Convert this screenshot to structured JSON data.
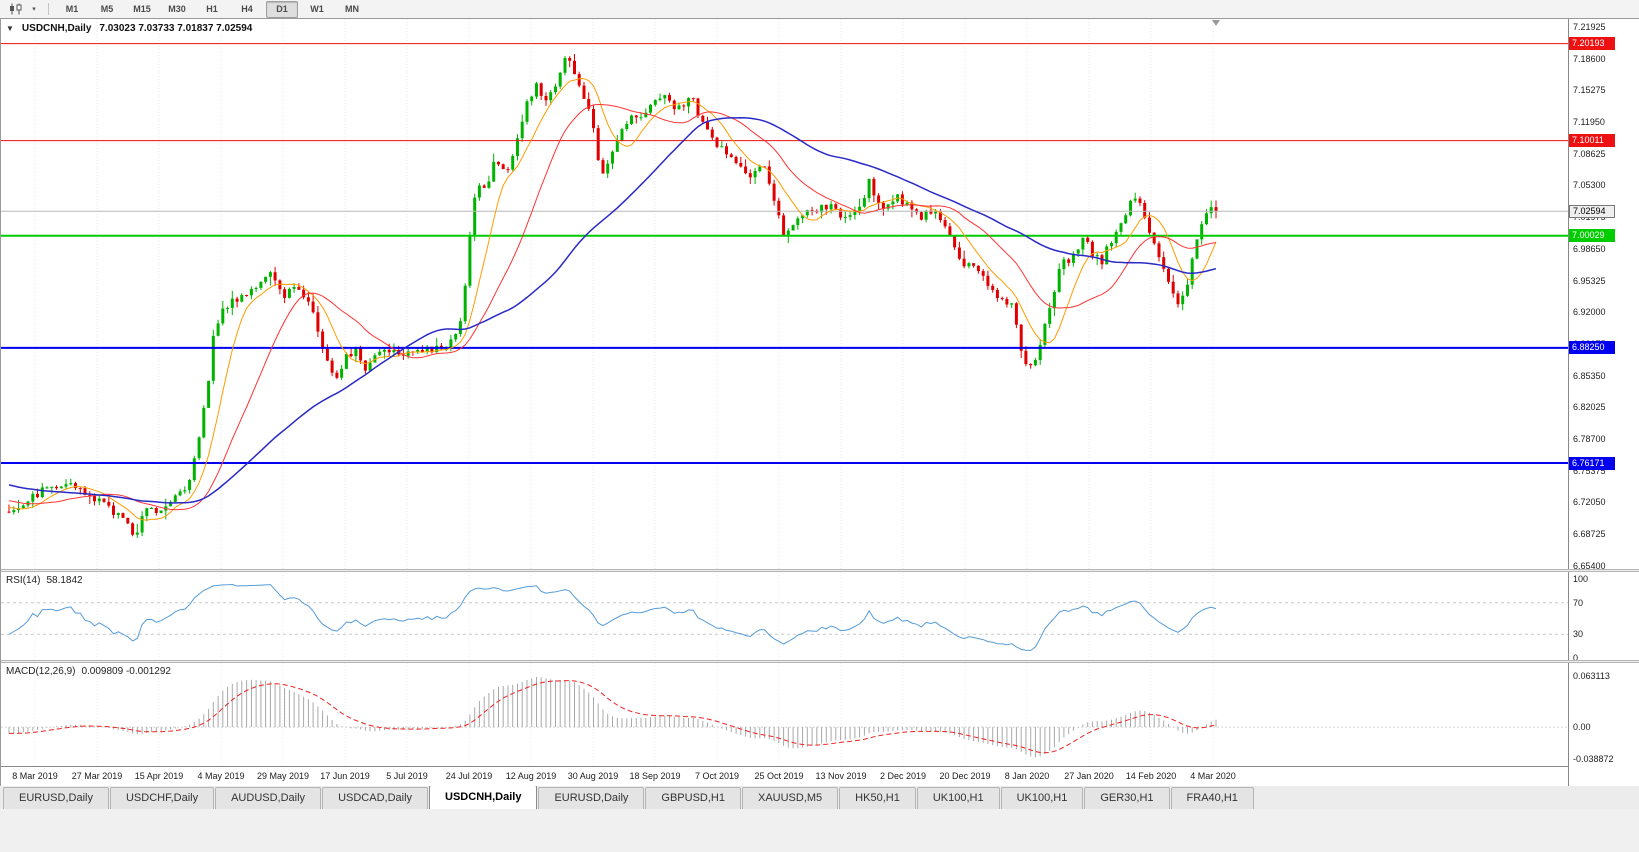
{
  "icons": {
    "one_click_caret": "▼",
    "toolbar_caret": "▾"
  },
  "toolbar": {
    "timeframes": [
      "M1",
      "M5",
      "M15",
      "M30",
      "H1",
      "H4",
      "D1",
      "W1",
      "MN"
    ],
    "active_timeframe": "D1"
  },
  "chart_header": {
    "title": "USDCNH,Daily",
    "ohlc": "7.03023 7.03733 7.01837 7.02594"
  },
  "rsi_panel": {
    "name": "RSI(14)",
    "value": "58.1842",
    "scale_labels": [
      "100",
      "70",
      "30",
      "0"
    ],
    "scale_values": [
      100,
      70,
      30,
      0
    ]
  },
  "macd_panel": {
    "name": "MACD(12,26,9)",
    "values": "0.009809 -0.001292",
    "scale_labels": [
      "0.063113",
      "0.00",
      "-0.038872"
    ]
  },
  "time_axis": {
    "labels": [
      "8 Mar 2019",
      "27 Mar 2019",
      "15 Apr 2019",
      "4 May 2019",
      "29 May 2019",
      "17 Jun 2019",
      "5 Jul 2019",
      "24 Jul 2019",
      "12 Aug 2019",
      "30 Aug 2019",
      "18 Sep 2019",
      "7 Oct 2019",
      "25 Oct 2019",
      "13 Nov 2019",
      "2 Dec 2019",
      "20 Dec 2019",
      "8 Jan 2020",
      "27 Jan 2020",
      "14 Feb 2020",
      "4 Mar 2020"
    ]
  },
  "price_axis": {
    "tick_top": 7.21925,
    "tick_step": 0.03325,
    "tick_count": 18
  },
  "tab_bar": {
    "tabs": [
      "EURUSD,Daily",
      "USDCHF,Daily",
      "AUDUSD,Daily",
      "USDCAD,Daily",
      "USDCNH,Daily",
      "EURUSD,Daily",
      "GBPUSD,H1",
      "XAUUSD,M5",
      "HK50,H1",
      "UK100,H1",
      "UK100,H1",
      "GER30,H1",
      "FRA40,H1"
    ],
    "active_index": 4
  },
  "chart_data": {
    "type": "candlestick",
    "symbol": "USDCNH",
    "period": "Daily",
    "candle_count": 255,
    "ylim": [
      6.6504,
      7.2277
    ],
    "up_color": "#00b300",
    "down_color": "#e00000",
    "noise_amp": 0.0045,
    "wick_amp": 0.008,
    "warmup": {
      "bars": 60,
      "start_price": 6.78
    },
    "last_candle": [
      7.03023,
      7.03733,
      7.01837,
      7.02594
    ],
    "close_anchors": [
      [
        0.0,
        6.712
      ],
      [
        0.014,
        6.722
      ],
      [
        0.031,
        6.736
      ],
      [
        0.047,
        6.742
      ],
      [
        0.064,
        6.728
      ],
      [
        0.08,
        6.718
      ],
      [
        0.094,
        6.704
      ],
      [
        0.104,
        6.684
      ],
      [
        0.113,
        6.718
      ],
      [
        0.124,
        6.71
      ],
      [
        0.136,
        6.728
      ],
      [
        0.147,
        6.737
      ],
      [
        0.156,
        6.774
      ],
      [
        0.164,
        6.836
      ],
      [
        0.17,
        6.902
      ],
      [
        0.177,
        6.924
      ],
      [
        0.188,
        6.932
      ],
      [
        0.199,
        6.944
      ],
      [
        0.21,
        6.952
      ],
      [
        0.217,
        6.958
      ],
      [
        0.227,
        6.938
      ],
      [
        0.238,
        6.948
      ],
      [
        0.249,
        6.932
      ],
      [
        0.257,
        6.895
      ],
      [
        0.265,
        6.862
      ],
      [
        0.272,
        6.853
      ],
      [
        0.279,
        6.876
      ],
      [
        0.287,
        6.88
      ],
      [
        0.294,
        6.858
      ],
      [
        0.302,
        6.874
      ],
      [
        0.312,
        6.883
      ],
      [
        0.325,
        6.878
      ],
      [
        0.337,
        6.882
      ],
      [
        0.348,
        6.879
      ],
      [
        0.358,
        6.882
      ],
      [
        0.368,
        6.89
      ],
      [
        0.376,
        6.915
      ],
      [
        0.383,
        7.02
      ],
      [
        0.389,
        7.055
      ],
      [
        0.396,
        7.048
      ],
      [
        0.403,
        7.085
      ],
      [
        0.412,
        7.062
      ],
      [
        0.42,
        7.095
      ],
      [
        0.428,
        7.135
      ],
      [
        0.437,
        7.158
      ],
      [
        0.445,
        7.142
      ],
      [
        0.453,
        7.16
      ],
      [
        0.461,
        7.188
      ],
      [
        0.467,
        7.178
      ],
      [
        0.476,
        7.145
      ],
      [
        0.484,
        7.118
      ],
      [
        0.49,
        7.065
      ],
      [
        0.499,
        7.085
      ],
      [
        0.507,
        7.115
      ],
      [
        0.517,
        7.125
      ],
      [
        0.528,
        7.13
      ],
      [
        0.539,
        7.148
      ],
      [
        0.548,
        7.14
      ],
      [
        0.558,
        7.132
      ],
      [
        0.565,
        7.148
      ],
      [
        0.573,
        7.12
      ],
      [
        0.583,
        7.102
      ],
      [
        0.594,
        7.088
      ],
      [
        0.605,
        7.072
      ],
      [
        0.615,
        7.062
      ],
      [
        0.625,
        7.072
      ],
      [
        0.633,
        7.045
      ],
      [
        0.641,
        7.005
      ],
      [
        0.65,
        7.012
      ],
      [
        0.66,
        7.022
      ],
      [
        0.671,
        7.028
      ],
      [
        0.681,
        7.032
      ],
      [
        0.691,
        7.018
      ],
      [
        0.699,
        7.022
      ],
      [
        0.708,
        7.035
      ],
      [
        0.713,
        7.058
      ],
      [
        0.718,
        7.04
      ],
      [
        0.727,
        7.028
      ],
      [
        0.735,
        7.045
      ],
      [
        0.743,
        7.032
      ],
      [
        0.754,
        7.018
      ],
      [
        0.764,
        7.028
      ],
      [
        0.774,
        7.012
      ],
      [
        0.785,
        6.982
      ],
      [
        0.793,
        6.968
      ],
      [
        0.804,
        6.965
      ],
      [
        0.814,
        6.945
      ],
      [
        0.823,
        6.932
      ],
      [
        0.832,
        6.928
      ],
      [
        0.838,
        6.885
      ],
      [
        0.845,
        6.858
      ],
      [
        0.851,
        6.872
      ],
      [
        0.857,
        6.898
      ],
      [
        0.865,
        6.932
      ],
      [
        0.872,
        6.978
      ],
      [
        0.878,
        6.968
      ],
      [
        0.885,
        6.988
      ],
      [
        0.891,
        7.002
      ],
      [
        0.898,
        6.982
      ],
      [
        0.905,
        6.972
      ],
      [
        0.911,
        6.992
      ],
      [
        0.918,
        7.005
      ],
      [
        0.925,
        7.022
      ],
      [
        0.931,
        7.042
      ],
      [
        0.938,
        7.03
      ],
      [
        0.944,
        7.008
      ],
      [
        0.951,
        6.985
      ],
      [
        0.958,
        6.962
      ],
      [
        0.964,
        6.938
      ],
      [
        0.971,
        6.928
      ],
      [
        0.978,
        6.958
      ],
      [
        0.984,
        6.998
      ],
      [
        0.991,
        7.028
      ],
      [
        1.0,
        7.026
      ]
    ],
    "moving_averages": [
      {
        "period": 8,
        "color": "#ff9c00",
        "width": 1
      },
      {
        "period": 20,
        "color": "#ff3333",
        "width": 1
      },
      {
        "period": 50,
        "color": "#2929c8",
        "width": 1.5
      }
    ],
    "horizontal_lines": [
      {
        "price": 7.20193,
        "color": "#ee1111",
        "width": 1
      },
      {
        "price": 7.10011,
        "color": "#ee1111",
        "width": 1
      },
      {
        "price": 7.00029,
        "color": "#00cc00",
        "width": 2
      },
      {
        "price": 6.8825,
        "color": "#0000ee",
        "width": 2
      },
      {
        "price": 6.76171,
        "color": "#0000ee",
        "width": 2
      }
    ],
    "bid_line": {
      "price": 7.02594,
      "color": "#b8b8b8"
    },
    "rsi": {
      "period": 14,
      "color": "#559bd8",
      "levels": [
        70,
        30
      ],
      "ylim": [
        -2.5,
        108.9
      ]
    },
    "macd": {
      "fast": 12,
      "slow": 26,
      "signal": 9,
      "hist_color": "#a8a8a8",
      "signal_color": "#ee2222",
      "ylim": [
        -0.0482,
        0.0795
      ]
    }
  }
}
